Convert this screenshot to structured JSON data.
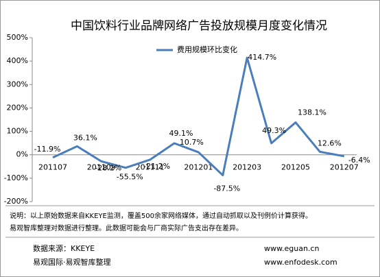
{
  "chart_data": {
    "type": "line",
    "title": "中国饮料行业品牌网络广告投放规模月度变化情况",
    "categories": [
      "201107",
      null,
      "201109",
      null,
      "201111",
      null,
      "201201",
      null,
      "201203",
      null,
      "201205",
      null,
      "201207"
    ],
    "series": [
      {
        "name": "费用规模环比变化",
        "color": "#4a7ebb",
        "values": [
          -11.9,
          36.1,
          -28.2,
          -55.5,
          -21.2,
          49.1,
          10.7,
          -87.5,
          414.7,
          49.3,
          138.1,
          12.6,
          -6.4
        ],
        "value_labels": [
          "-11.9%",
          "36.1%",
          "-28.2%",
          "-55.5%",
          "-21.2%",
          "49.1%",
          "10.7%",
          "-87.5%",
          "414.7%",
          "49.3%",
          "138.1%",
          "12.6%",
          "-6.4%"
        ]
      }
    ],
    "ylim": [
      -200,
      500
    ],
    "yticks": [
      {
        "value": -200,
        "label": "-200%"
      },
      {
        "value": -100,
        "label": "-100%"
      },
      {
        "value": 0,
        "label": "0%"
      },
      {
        "value": 100,
        "label": "100%"
      },
      {
        "value": 200,
        "label": "200%"
      },
      {
        "value": 300,
        "label": "300%"
      },
      {
        "value": 400,
        "label": "400%"
      },
      {
        "value": 500,
        "label": "500%"
      }
    ],
    "legend": "top"
  },
  "notes": [
    "说明：以上原始数据来自KKEYE监测，覆盖500余家网络媒体，通过自动抓取以及刊例价计算获得。",
    "易观智库整理对数据进行整理。此数据可能会与厂商实际广告支出存在差异。"
  ],
  "footer": {
    "source": "数据来源：KKEYE",
    "org": "易观国际·易观智库整理",
    "url1": "www.eguan.cn",
    "url2": "www.enfodesk.com"
  }
}
